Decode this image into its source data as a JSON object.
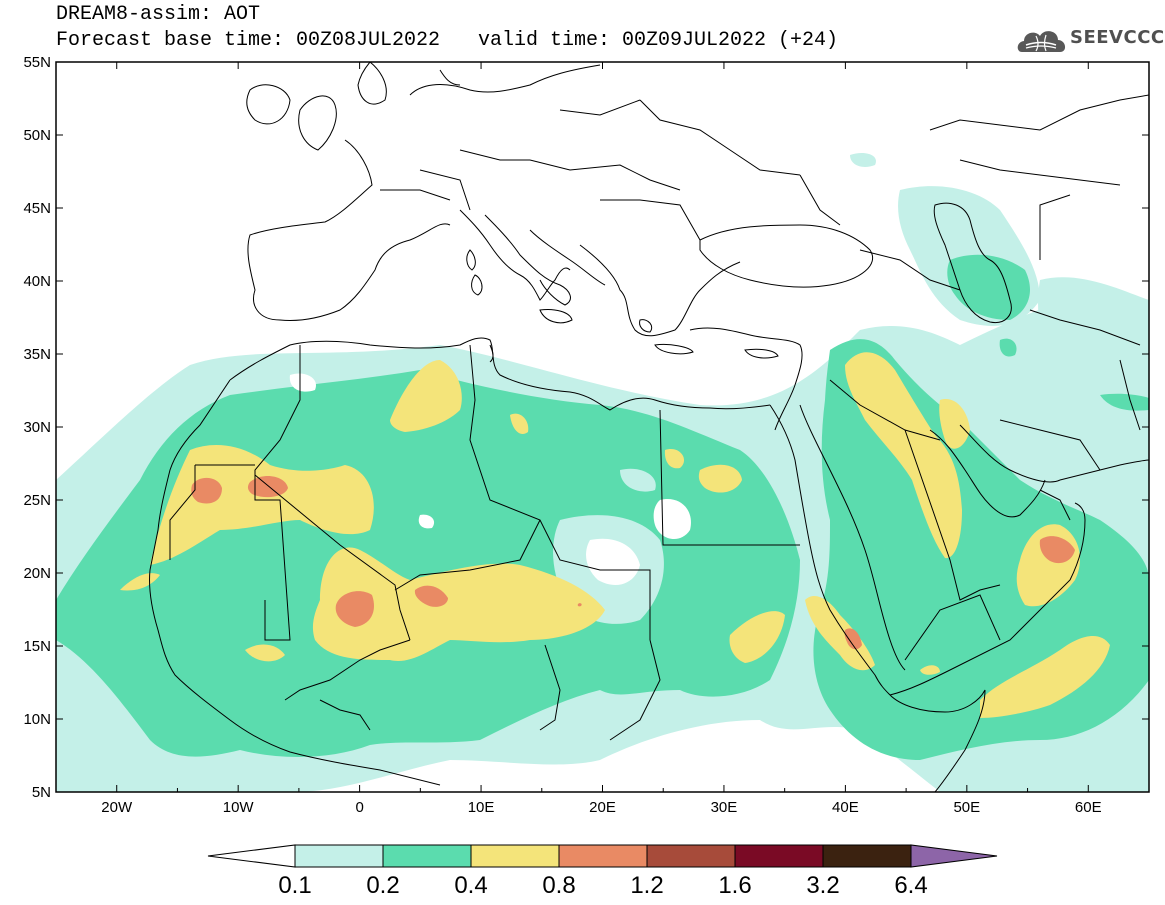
{
  "header": {
    "title_line1": "DREAM8-assim: AOT",
    "title_line2": "Forecast base time: 00Z08JUL2022",
    "valid_time": "valid time: 00Z09JUL2022 (+24)"
  },
  "logo": {
    "text": "SEEVCCC",
    "icon": "cloud-globe-icon"
  },
  "map": {
    "variable": "AOT",
    "lon_range": [
      -25,
      65
    ],
    "lat_range": [
      5,
      55
    ],
    "lat_ticks": [
      "55N",
      "50N",
      "45N",
      "40N",
      "35N",
      "30N",
      "25N",
      "20N",
      "15N",
      "10N",
      "5N"
    ],
    "lon_ticks": [
      "20W",
      "10W",
      "0",
      "10E",
      "20E",
      "30E",
      "40E",
      "50E",
      "60E"
    ]
  },
  "colorbar": {
    "labels": [
      "0.1",
      "0.2",
      "0.4",
      "0.8",
      "1.2",
      "1.6",
      "3.2",
      "6.4"
    ],
    "colors": [
      "#ffffff",
      "#c4f0e8",
      "#5bdcae",
      "#f4e47a",
      "#e98a64",
      "#a74b3a",
      "#7a0a25",
      "#3b2210",
      "#8d65a8"
    ]
  }
}
